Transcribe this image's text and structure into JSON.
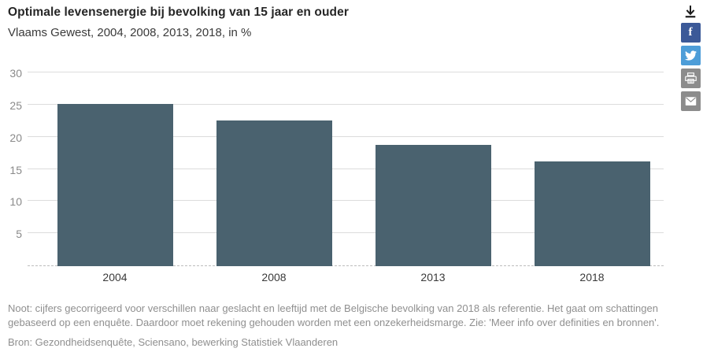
{
  "header": {
    "title": "Optimale levensenergie bij bevolking van 15 jaar en ouder",
    "subtitle": "Vlaams Gewest, 2004, 2008, 2013, 2018, in %"
  },
  "share": {
    "download_color": "#1a1a1a",
    "facebook_color": "#3b5998",
    "twitter_color": "#4d9dd8",
    "print_color": "#8c8c8c",
    "email_color": "#8c8c8c",
    "facebook_letter": "f"
  },
  "chart_data": {
    "type": "bar",
    "title": "Optimale levensenergie bij bevolking van 15 jaar en ouder",
    "subtitle": "Vlaams Gewest, 2004, 2008, 2013, 2018, in %",
    "categories": [
      "2004",
      "2008",
      "2013",
      "2018"
    ],
    "values": [
      25.2,
      22.7,
      18.8,
      16.3
    ],
    "xlabel": "",
    "ylabel": "",
    "ylim": [
      0,
      30
    ],
    "yticks": [
      5,
      10,
      15,
      20,
      25,
      30
    ],
    "grid": "horizontal-light-gray",
    "legend": "none",
    "bar_color": "#4a626f",
    "gridline_color": "#dcdcdc",
    "baseline_style": "dashed"
  },
  "footer": {
    "note": "Noot: cijfers gecorrigeerd voor verschillen naar geslacht en leeftijd met de Belgische bevolking van 2018 als referentie. Het gaat om schattingen gebaseerd op een enquête. Daardoor moet rekening gehouden worden met een onzekerheidsmarge. Zie: 'Meer info over definities en bronnen'.",
    "source": "Bron: Gezondheidsenquête, Sciensano, bewerking Statistiek Vlaanderen"
  }
}
